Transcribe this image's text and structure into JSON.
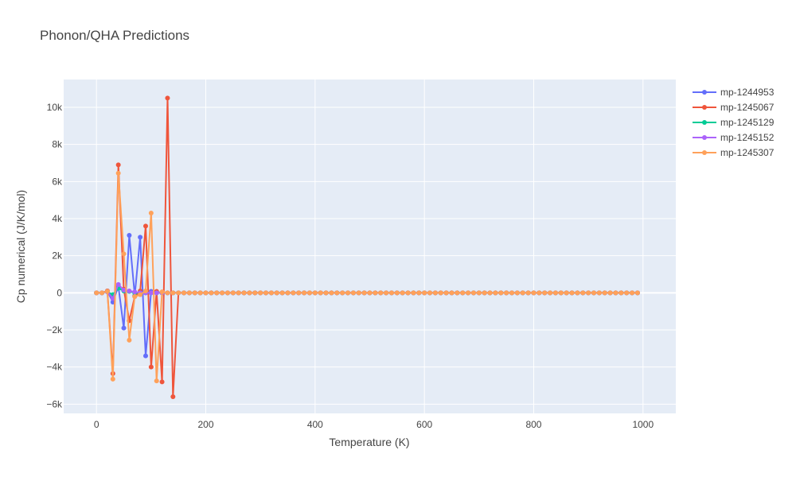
{
  "chart_data": {
    "type": "line",
    "title": "Phonon/QHA Predictions",
    "xlabel": "Temperature (K)",
    "ylabel": "Cp numerical (J/K/mol)",
    "xlim": [
      -60,
      1060
    ],
    "ylim": [
      -6500,
      11500
    ],
    "x_ticks": [
      0,
      200,
      400,
      600,
      800,
      1000
    ],
    "x_tick_labels": [
      "0",
      "200",
      "400",
      "600",
      "800",
      "1000"
    ],
    "y_ticks": [
      -6000,
      -4000,
      -2000,
      0,
      2000,
      4000,
      6000,
      8000,
      10000
    ],
    "y_tick_labels": [
      "−6k",
      "−4k",
      "−2k",
      "0",
      "2k",
      "4k",
      "6k",
      "8k",
      "10k"
    ],
    "grid": true,
    "legend_position": "top-right",
    "x_grid": {
      "start": 0,
      "end": 990,
      "step": 10
    },
    "series": [
      {
        "name": "mp-1244953",
        "color": "#636efa",
        "spikes": {
          "20": 100,
          "30": -500,
          "40": 350,
          "50": -1900,
          "60": 3100,
          "70": -150,
          "80": 3000,
          "90": -3400,
          "100": 80,
          "110": 50
        }
      },
      {
        "name": "mp-1245067",
        "color": "#ef553b",
        "spikes": {
          "20": 100,
          "30": -4350,
          "40": 6900,
          "50": 200,
          "60": -1500,
          "70": -200,
          "80": 100,
          "90": 3600,
          "100": -4000,
          "110": 80,
          "120": -4800,
          "130": 10500,
          "140": -5600
        }
      },
      {
        "name": "mp-1245129",
        "color": "#00cc96",
        "spikes": {
          "20": 50,
          "30": -100,
          "40": 250,
          "50": 100,
          "60": 80
        }
      },
      {
        "name": "mp-1245152",
        "color": "#ab63fa",
        "spikes": {
          "20": 50,
          "30": -300,
          "40": 450,
          "50": 150,
          "60": 100,
          "70": 50
        }
      },
      {
        "name": "mp-1245307",
        "color": "#ffa15a",
        "spikes": {
          "20": 80,
          "30": -4650,
          "40": 6450,
          "50": 2100,
          "60": -2550,
          "70": -200,
          "80": -100,
          "90": 100,
          "100": 4300,
          "110": -4750,
          "120": 50
        }
      }
    ]
  }
}
